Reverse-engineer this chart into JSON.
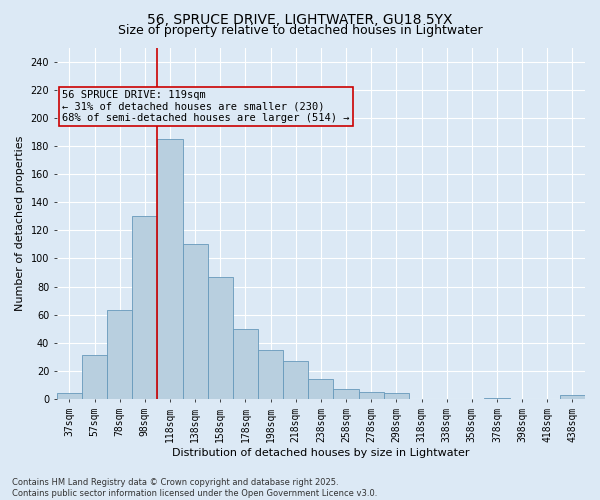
{
  "title1": "56, SPRUCE DRIVE, LIGHTWATER, GU18 5YX",
  "title2": "Size of property relative to detached houses in Lightwater",
  "xlabel": "Distribution of detached houses by size in Lightwater",
  "ylabel": "Number of detached properties",
  "categories": [
    "37sqm",
    "57sqm",
    "78sqm",
    "98sqm",
    "118sqm",
    "138sqm",
    "158sqm",
    "178sqm",
    "198sqm",
    "218sqm",
    "238sqm",
    "258sqm",
    "278sqm",
    "298sqm",
    "318sqm",
    "338sqm",
    "358sqm",
    "378sqm",
    "398sqm",
    "418sqm",
    "438sqm"
  ],
  "values": [
    4,
    31,
    63,
    130,
    185,
    110,
    87,
    50,
    35,
    27,
    14,
    7,
    5,
    4,
    0,
    0,
    0,
    1,
    0,
    0,
    3
  ],
  "bar_color": "#b8cfdf",
  "bar_edge_color": "#6699bb",
  "bg_color": "#dce9f5",
  "grid_color": "#ffffff",
  "vline_index": 4,
  "vline_color": "#cc0000",
  "annotation_line1": "56 SPRUCE DRIVE: 119sqm",
  "annotation_line2": "← 31% of detached houses are smaller (230)",
  "annotation_line3": "68% of semi-detached houses are larger (514) →",
  "annotation_box_color": "#cc0000",
  "ylim": [
    0,
    250
  ],
  "yticks": [
    0,
    20,
    40,
    60,
    80,
    100,
    120,
    140,
    160,
    180,
    200,
    220,
    240
  ],
  "footer": "Contains HM Land Registry data © Crown copyright and database right 2025.\nContains public sector information licensed under the Open Government Licence v3.0.",
  "title_fontsize": 10,
  "subtitle_fontsize": 9,
  "tick_fontsize": 7,
  "ylabel_fontsize": 8,
  "xlabel_fontsize": 8,
  "annotation_fontsize": 7.5,
  "footer_fontsize": 6
}
